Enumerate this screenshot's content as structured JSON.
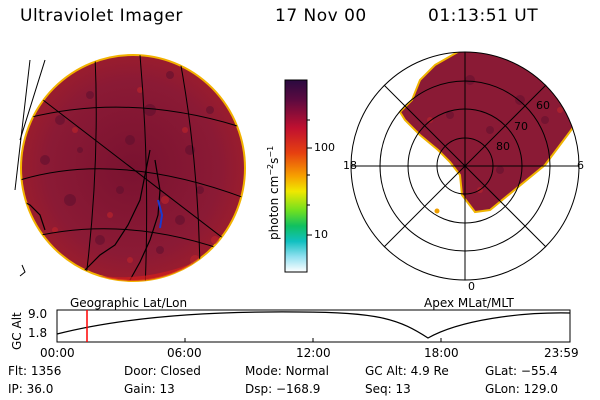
{
  "header": {
    "instrument": "Ultraviolet Imager",
    "date": "17 Nov 00",
    "time": "01:13:51 UT"
  },
  "colorbar": {
    "unit_label": "photon cm",
    "unit_sup1": "−2",
    "unit_mid": "s",
    "unit_sup2": "−1",
    "ticks": [
      "100",
      "10"
    ],
    "scale": "log"
  },
  "left_panel": {
    "caption": "Geographic Lat/Lon"
  },
  "right_panel": {
    "caption": "Apex MLat/MLT",
    "mlt_labels": {
      "left": "18",
      "right": "6",
      "bottom": "0"
    },
    "lat_labels": [
      "80",
      "70",
      "60"
    ]
  },
  "altitude_plot": {
    "ylabel": "GC Alt",
    "yticks": [
      "9.0",
      "1.8"
    ],
    "xticks": [
      "00:00",
      "06:00",
      "12:00",
      "18:00",
      "23:59"
    ],
    "marker_color": "#ff0000"
  },
  "info": {
    "flt_label": "Flt:",
    "flt_value": "1356",
    "door_label": "Door:",
    "door_value": "Closed",
    "mode_label": "Mode:",
    "mode_value": "Normal",
    "gcalt_label": "GC Alt:",
    "gcalt_value": "4.9 Re",
    "glat_label": "GLat:",
    "glat_value": "−55.4",
    "ip_label": "IP:",
    "ip_value": "36.0",
    "gain_label": "Gain:",
    "gain_value": "13",
    "dsp_label": "Dsp:",
    "dsp_value": "−168.9",
    "seq_label": "Seq:",
    "seq_value": "13",
    "glon_label": "GLon:",
    "glon_value": "129.0"
  }
}
